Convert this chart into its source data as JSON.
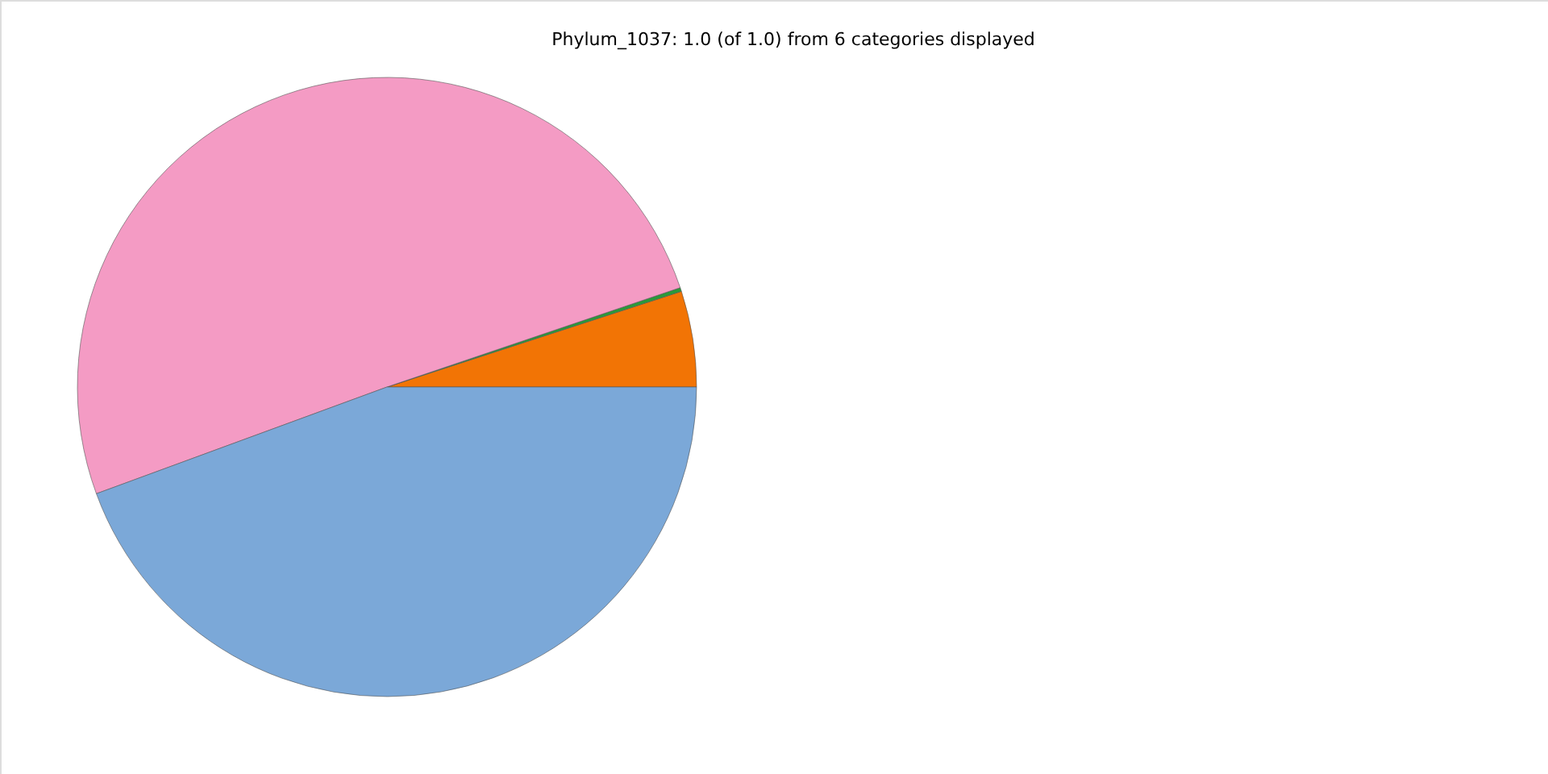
{
  "chart_data": {
    "type": "pie",
    "title": "Phylum_1037: 1.0 (of 1.0) from 6 categories displayed",
    "categories": [
      null,
      null,
      null,
      null
    ],
    "values": [
      5.0,
      0.2,
      50.4,
      44.4
    ],
    "colors": [
      "#f27405",
      "#2a9a3a",
      "#f49bc4",
      "#7ba8d8"
    ],
    "legend": false
  }
}
